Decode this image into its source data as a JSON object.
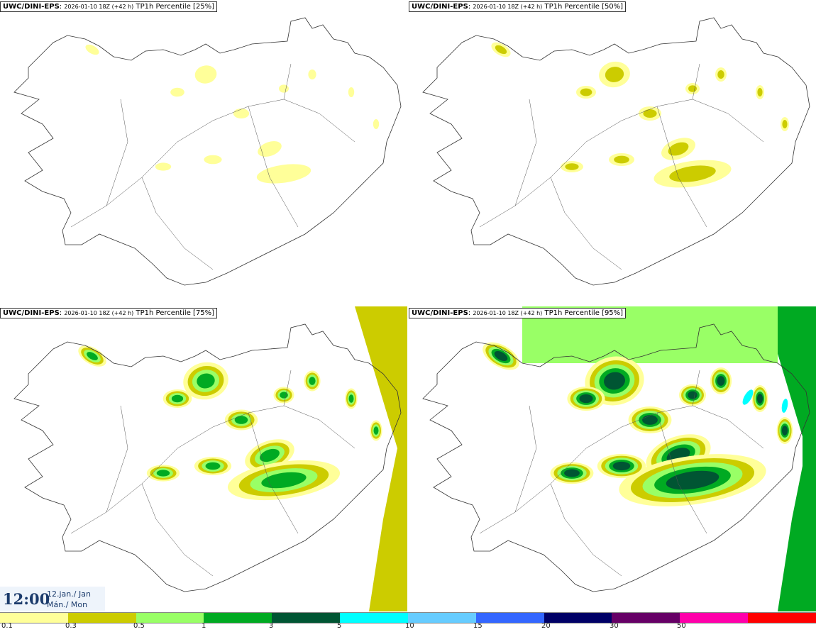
{
  "panels": [
    {
      "model": "UWC/DINI-EPS",
      "run": "2026-01-10 18Z (+42 h)",
      "field": "TP1h Percentile",
      "percentile": "[25%]",
      "level": 0
    },
    {
      "model": "UWC/DINI-EPS",
      "run": "2026-01-10 18Z (+42 h)",
      "field": "TP1h Percentile",
      "percentile": "[50%]",
      "level": 1
    },
    {
      "model": "UWC/DINI-EPS",
      "run": "2026-01-10 18Z (+42 h)",
      "field": "TP1h Percentile",
      "percentile": "[75%]",
      "level": 2
    },
    {
      "model": "UWC/DINI-EPS",
      "run": "2026-01-10 18Z (+42 h)",
      "field": "TP1h Percentile",
      "percentile": "[95%]",
      "level": 3
    }
  ],
  "valid_time": {
    "time": "12:00",
    "date": "12.jan./ Jan",
    "weekday": "Mán./ Mon"
  },
  "colorbar": {
    "colors": [
      "#ffff99",
      "#cccc00",
      "#99ff66",
      "#00aa22",
      "#005533",
      "#00ffff",
      "#66ccff",
      "#3366ff",
      "#000066",
      "#660066",
      "#ff00aa",
      "#ff0000"
    ],
    "ticks": [
      "0.1",
      "0.3",
      "0.5",
      "1",
      "3",
      "5",
      "10",
      "15",
      "20",
      "30",
      "50"
    ]
  }
}
